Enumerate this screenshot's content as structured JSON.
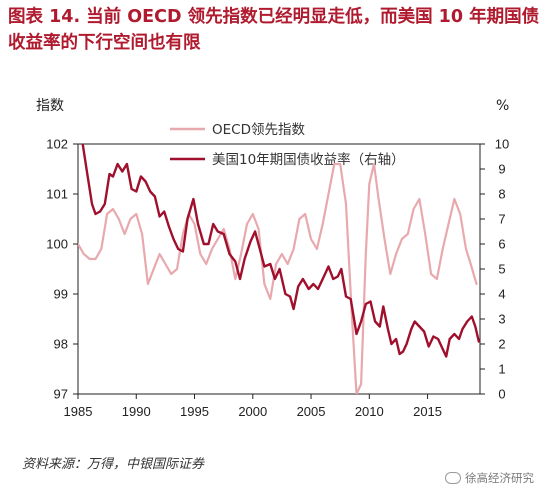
{
  "figure": {
    "title": "图表 14. 当前 OECD 领先指数已经明显走低，而美国 10 年期国债收益率的下行空间也有限",
    "source": "资料来源：万得，中银国际证券",
    "watermark": "徐高经济研究"
  },
  "chart_data": {
    "type": "line",
    "y_left_label": "指数",
    "y_right_label": "%",
    "ylim_left": [
      97,
      102
    ],
    "ylim_right": [
      0,
      10
    ],
    "xlim": [
      1985,
      2019.5
    ],
    "x_ticks": [
      1985,
      1990,
      1995,
      2000,
      2005,
      2010,
      2015
    ],
    "y_left_ticks": [
      97,
      98,
      99,
      100,
      101,
      102
    ],
    "y_right_ticks": [
      0,
      1,
      2,
      3,
      4,
      5,
      6,
      7,
      8,
      9,
      10
    ],
    "legend_position": "top-center",
    "grid": false,
    "series": [
      {
        "name": "OECD领先指数",
        "axis": "left",
        "color": "#e8a9ae",
        "points": [
          [
            1985.0,
            100.0
          ],
          [
            1985.5,
            99.8
          ],
          [
            1986.0,
            99.7
          ],
          [
            1986.5,
            99.7
          ],
          [
            1987.0,
            99.9
          ],
          [
            1987.5,
            100.6
          ],
          [
            1988.0,
            100.7
          ],
          [
            1988.5,
            100.5
          ],
          [
            1989.0,
            100.2
          ],
          [
            1989.5,
            100.5
          ],
          [
            1990.0,
            100.6
          ],
          [
            1990.5,
            100.2
          ],
          [
            1991.0,
            99.2
          ],
          [
            1991.5,
            99.5
          ],
          [
            1992.0,
            99.8
          ],
          [
            1992.5,
            99.6
          ],
          [
            1993.0,
            99.4
          ],
          [
            1993.5,
            99.5
          ],
          [
            1994.0,
            100.2
          ],
          [
            1994.5,
            100.6
          ],
          [
            1995.0,
            100.4
          ],
          [
            1995.5,
            99.8
          ],
          [
            1996.0,
            99.6
          ],
          [
            1996.5,
            99.9
          ],
          [
            1997.0,
            100.1
          ],
          [
            1997.5,
            100.3
          ],
          [
            1998.0,
            99.9
          ],
          [
            1998.5,
            99.3
          ],
          [
            1999.0,
            99.8
          ],
          [
            1999.5,
            100.4
          ],
          [
            2000.0,
            100.6
          ],
          [
            2000.5,
            100.3
          ],
          [
            2001.0,
            99.2
          ],
          [
            2001.5,
            98.9
          ],
          [
            2002.0,
            99.6
          ],
          [
            2002.5,
            99.8
          ],
          [
            2003.0,
            99.6
          ],
          [
            2003.5,
            99.9
          ],
          [
            2004.0,
            100.5
          ],
          [
            2004.5,
            100.6
          ],
          [
            2005.0,
            100.1
          ],
          [
            2005.5,
            99.9
          ],
          [
            2006.0,
            100.4
          ],
          [
            2006.5,
            101.0
          ],
          [
            2007.0,
            101.6
          ],
          [
            2007.5,
            101.6
          ],
          [
            2008.0,
            100.8
          ],
          [
            2008.5,
            98.6
          ],
          [
            2008.9,
            97.0
          ],
          [
            2009.3,
            97.2
          ],
          [
            2009.7,
            99.8
          ],
          [
            2010.0,
            101.2
          ],
          [
            2010.4,
            101.6
          ],
          [
            2010.8,
            100.9
          ],
          [
            2011.3,
            100.1
          ],
          [
            2011.8,
            99.4
          ],
          [
            2012.3,
            99.8
          ],
          [
            2012.8,
            100.1
          ],
          [
            2013.3,
            100.2
          ],
          [
            2013.8,
            100.7
          ],
          [
            2014.3,
            100.9
          ],
          [
            2014.8,
            100.2
          ],
          [
            2015.3,
            99.4
          ],
          [
            2015.8,
            99.3
          ],
          [
            2016.3,
            99.9
          ],
          [
            2016.8,
            100.4
          ],
          [
            2017.3,
            100.9
          ],
          [
            2017.8,
            100.6
          ],
          [
            2018.3,
            99.9
          ],
          [
            2018.7,
            99.6
          ],
          [
            2019.2,
            99.2
          ]
        ]
      },
      {
        "name": "美国10年期国债收益率（右轴）",
        "axis": "right",
        "color": "#a00f2c",
        "points": [
          [
            1985.0,
            10.9
          ],
          [
            1985.4,
            10.0
          ],
          [
            1985.8,
            8.8
          ],
          [
            1986.2,
            7.6
          ],
          [
            1986.5,
            7.2
          ],
          [
            1986.9,
            7.3
          ],
          [
            1987.3,
            7.6
          ],
          [
            1987.7,
            8.8
          ],
          [
            1988.0,
            8.7
          ],
          [
            1988.4,
            9.2
          ],
          [
            1988.8,
            8.9
          ],
          [
            1989.2,
            9.2
          ],
          [
            1989.6,
            8.2
          ],
          [
            1990.0,
            8.1
          ],
          [
            1990.4,
            8.7
          ],
          [
            1990.8,
            8.5
          ],
          [
            1991.2,
            8.1
          ],
          [
            1991.6,
            7.9
          ],
          [
            1992.0,
            7.1
          ],
          [
            1992.4,
            7.3
          ],
          [
            1992.8,
            6.7
          ],
          [
            1993.2,
            6.2
          ],
          [
            1993.6,
            5.8
          ],
          [
            1994.0,
            5.7
          ],
          [
            1994.4,
            7.0
          ],
          [
            1994.9,
            7.8
          ],
          [
            1995.3,
            6.8
          ],
          [
            1995.8,
            6.0
          ],
          [
            1996.2,
            6.0
          ],
          [
            1996.6,
            6.8
          ],
          [
            1997.0,
            6.5
          ],
          [
            1997.5,
            6.4
          ],
          [
            1998.0,
            5.6
          ],
          [
            1998.5,
            5.3
          ],
          [
            1998.9,
            4.6
          ],
          [
            1999.3,
            5.4
          ],
          [
            1999.8,
            6.1
          ],
          [
            2000.2,
            6.5
          ],
          [
            2000.6,
            5.8
          ],
          [
            2001.0,
            5.1
          ],
          [
            2001.5,
            5.2
          ],
          [
            2001.9,
            4.6
          ],
          [
            2002.3,
            5.0
          ],
          [
            2002.8,
            4.0
          ],
          [
            2003.2,
            3.9
          ],
          [
            2003.5,
            3.4
          ],
          [
            2003.9,
            4.3
          ],
          [
            2004.3,
            4.6
          ],
          [
            2004.8,
            4.2
          ],
          [
            2005.2,
            4.4
          ],
          [
            2005.6,
            4.2
          ],
          [
            2006.0,
            4.6
          ],
          [
            2006.5,
            5.1
          ],
          [
            2006.9,
            4.6
          ],
          [
            2007.3,
            4.7
          ],
          [
            2007.6,
            5.0
          ],
          [
            2008.0,
            3.9
          ],
          [
            2008.4,
            3.8
          ],
          [
            2008.9,
            2.4
          ],
          [
            2009.3,
            2.9
          ],
          [
            2009.7,
            3.6
          ],
          [
            2010.1,
            3.7
          ],
          [
            2010.5,
            2.9
          ],
          [
            2010.9,
            2.7
          ],
          [
            2011.2,
            3.5
          ],
          [
            2011.6,
            2.6
          ],
          [
            2011.9,
            2.0
          ],
          [
            2012.3,
            2.2
          ],
          [
            2012.6,
            1.6
          ],
          [
            2012.9,
            1.7
          ],
          [
            2013.2,
            2.0
          ],
          [
            2013.6,
            2.6
          ],
          [
            2013.9,
            2.9
          ],
          [
            2014.3,
            2.7
          ],
          [
            2014.7,
            2.5
          ],
          [
            2015.1,
            1.9
          ],
          [
            2015.5,
            2.3
          ],
          [
            2015.9,
            2.2
          ],
          [
            2016.3,
            1.8
          ],
          [
            2016.6,
            1.5
          ],
          [
            2016.9,
            2.2
          ],
          [
            2017.3,
            2.4
          ],
          [
            2017.7,
            2.2
          ],
          [
            2018.0,
            2.6
          ],
          [
            2018.4,
            2.9
          ],
          [
            2018.8,
            3.1
          ],
          [
            2019.1,
            2.7
          ],
          [
            2019.4,
            2.1
          ]
        ]
      }
    ]
  }
}
